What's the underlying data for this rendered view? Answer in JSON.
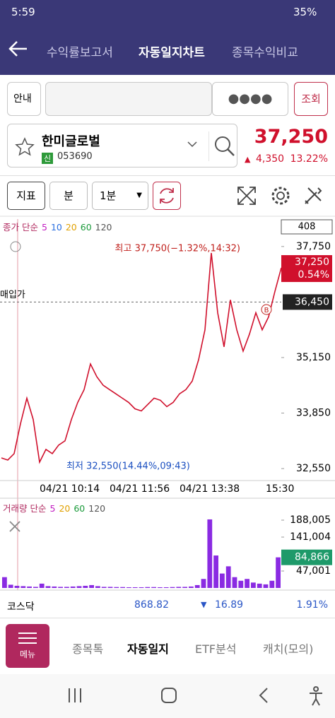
{
  "status_bar": {
    "time": "5:59",
    "battery": "35%"
  },
  "header": {
    "tabs": [
      "수익률보고서",
      "자동일지차트",
      "종목수익비교"
    ]
  },
  "search": {
    "label": "안내",
    "password": "●●●●",
    "button": "조회"
  },
  "stock": {
    "name": "한미글로벌",
    "badge": "신",
    "code": "053690",
    "price": "37,250",
    "change": "4,350",
    "change_pct": "13.22%"
  },
  "toolbar": {
    "indicator": "지표",
    "unit": "분",
    "period": "1분"
  },
  "chart_data": [
    {
      "type": "line",
      "legend_label": "종가 단순",
      "ma": [
        {
          "name": "5",
          "color": "#c21cc2"
        },
        {
          "name": "10",
          "color": "#2a6fe0"
        },
        {
          "name": "20",
          "color": "#e0a000"
        },
        {
          "name": "60",
          "color": "#1a9a3a"
        },
        {
          "name": "120",
          "color": "#555555"
        }
      ],
      "count_box": 408,
      "color": "#d0102c",
      "values": [
        32800,
        32750,
        32900,
        33600,
        34200,
        33700,
        32700,
        33000,
        32900,
        33100,
        33200,
        33700,
        34100,
        34400,
        35000,
        34700,
        34500,
        34400,
        34300,
        34200,
        34100,
        33950,
        33900,
        34050,
        34200,
        34150,
        34000,
        34100,
        34300,
        34400,
        34600,
        35100,
        35800,
        37600,
        36200,
        35400,
        36500,
        35800,
        35300,
        35700,
        36200,
        35800,
        36100,
        36700,
        37250
      ],
      "ylim": [
        32270,
        38260
      ],
      "yticks": [
        {
          "value": 37750,
          "label": "37,750"
        },
        {
          "value": 35150,
          "label": "35,150"
        },
        {
          "value": 33850,
          "label": "33,850"
        },
        {
          "value": 32550,
          "label": "32,550"
        }
      ],
      "xtick_labels": [
        "04/21 10:14",
        "04/21 11:56",
        "04/21 13:38",
        "15:30"
      ],
      "current": {
        "value": 37250,
        "label": "37,250",
        "pct": "0.54%"
      },
      "buy_price": {
        "name": "매입가",
        "value": 36450,
        "label": "36,450"
      },
      "high_annotation": "최고 37,750(−1.32%,14:32)",
      "low_annotation": "최저 32,550(14.44%,09:43)",
      "marker": "B"
    },
    {
      "type": "bar",
      "legend_label": "거래량 단순",
      "ma": [
        {
          "name": "5",
          "color": "#c21cc2"
        },
        {
          "name": "20",
          "color": "#e0a000"
        },
        {
          "name": "60",
          "color": "#1a9a3a"
        },
        {
          "name": "120",
          "color": "#555555"
        }
      ],
      "color": "#8a2be2",
      "values": [
        30000,
        9000,
        6000,
        5000,
        4000,
        3000,
        12000,
        5000,
        4000,
        3000,
        3000,
        4000,
        5000,
        6000,
        8000,
        5000,
        3000,
        3000,
        2500,
        2500,
        2000,
        2000,
        2000,
        2500,
        2500,
        2000,
        2000,
        2500,
        3000,
        3000,
        4000,
        8000,
        25000,
        190000,
        90000,
        40000,
        60000,
        30000,
        20000,
        25000,
        15000,
        12000,
        10000,
        20000,
        84866
      ],
      "ylim": [
        0,
        235000
      ],
      "yticks": [
        {
          "value": 188005,
          "label": "188,005"
        },
        {
          "value": 141004,
          "label": "141,004"
        },
        {
          "value": 47001,
          "label": "47,001"
        }
      ],
      "current": {
        "value": 84866,
        "label": "84,866"
      }
    }
  ],
  "index": {
    "name": "코스닥",
    "value": "868.82",
    "change": "16.89",
    "change_pct": "1.91%"
  },
  "nav": {
    "menu": "메뉴",
    "tabs": [
      "종목톡",
      "자동일지",
      "ETF분석",
      "캐치(모의)"
    ]
  }
}
